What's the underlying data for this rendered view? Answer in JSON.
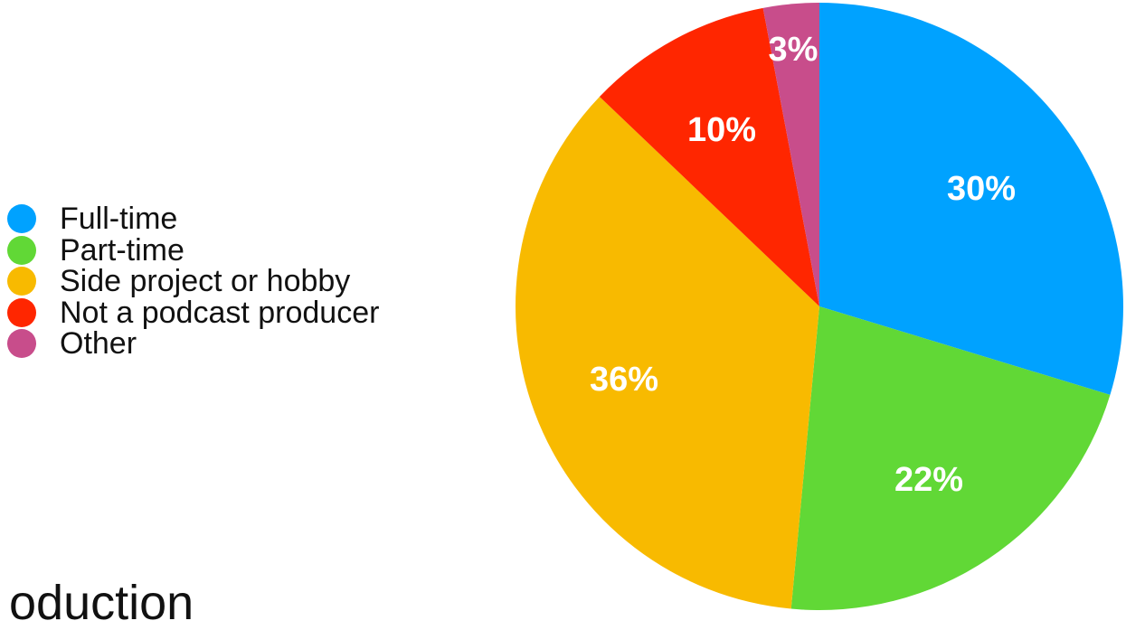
{
  "chart_data": {
    "type": "pie",
    "categories": [
      "Full-time",
      "Part-time",
      "Side project or hobby",
      "Not a podcast producer",
      "Other"
    ],
    "values": [
      30,
      22,
      36,
      10,
      3
    ],
    "labels": [
      "30%",
      "22%",
      "36%",
      "10%",
      "3%"
    ],
    "colors": [
      "#00a2ff",
      "#61d836",
      "#f8ba00",
      "#ff2600",
      "#c84d8b"
    ],
    "legend_position": "left",
    "start_angle": "top",
    "direction": "clockwise"
  },
  "background_text": "oduction"
}
